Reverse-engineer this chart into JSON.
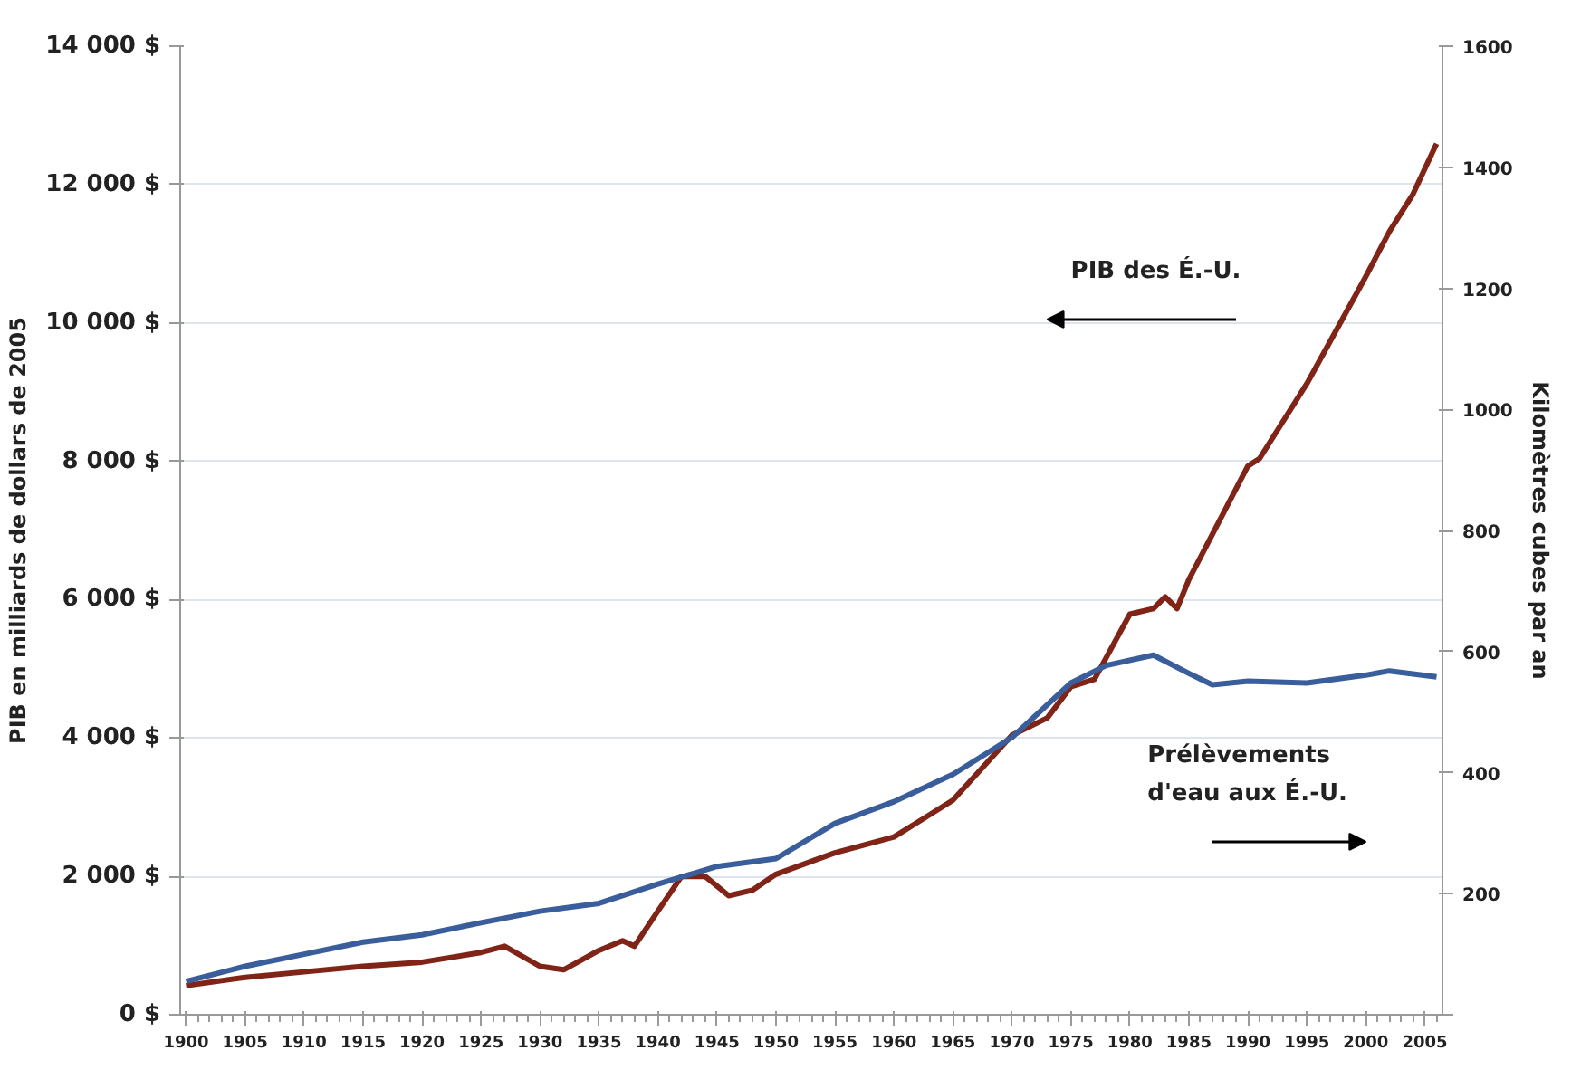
{
  "chart_data": {
    "type": "line",
    "ylabel": "PIB en milliards de dollars de 2005",
    "y2label": "Kilomètres cubes par an",
    "annotations": [
      "PIB des É.-U.",
      "Prélèvements d'eau aux É.-U."
    ],
    "xlim": [
      1899.5,
      2006.5
    ],
    "xticks": [
      1900,
      1905,
      1910,
      1915,
      1920,
      1925,
      1930,
      1935,
      1940,
      1945,
      1950,
      1955,
      1960,
      1965,
      1970,
      1975,
      1980,
      1985,
      1990,
      1995,
      2000,
      2005
    ],
    "ylim": [
      0,
      14000
    ],
    "yticks": [
      {
        "value": 0,
        "label": "0 $"
      },
      {
        "value": 2000,
        "label": "2 000 $"
      },
      {
        "value": 4000,
        "label": "4 000 $"
      },
      {
        "value": 6000,
        "label": "6 000 $"
      },
      {
        "value": 8000,
        "label": "8 000 $"
      },
      {
        "value": 10000,
        "label": "10 000 $"
      },
      {
        "value": 12000,
        "label": "12 000 $"
      },
      {
        "value": 14000,
        "label": "14 000 $"
      }
    ],
    "y2lim": [
      0,
      1600
    ],
    "y2ticks": [
      {
        "value": 0,
        "label": null
      },
      200,
      400,
      600,
      800,
      1000,
      1200,
      1400,
      1600
    ],
    "grid": "y",
    "line_style": "solid",
    "series": [
      {
        "color": "#7f2417",
        "x": [
          1900,
          1905,
          1910,
          1915,
          1920,
          1925,
          1927,
          1930,
          1932,
          1935,
          1937,
          1938,
          1940,
          1942,
          1944,
          1946,
          1948,
          1950,
          1955,
          1960,
          1965,
          1970,
          1973,
          1975,
          1977,
          1980,
          1982,
          1983,
          1984,
          1985,
          1990,
          1991,
          1995,
          2000,
          2002,
          2004,
          2006
        ],
        "values": [
          420,
          540,
          620,
          700,
          760,
          900,
          990,
          700,
          650,
          930,
          1070,
          990,
          1500,
          2000,
          2000,
          1720,
          1800,
          2030,
          2340,
          2570,
          3100,
          4040,
          4290,
          4740,
          4850,
          5790,
          5870,
          6040,
          5870,
          6290,
          7930,
          8040,
          9120,
          10670,
          11320,
          11860,
          12590
        ]
      },
      {
        "color": "#3a5d9c",
        "axis": "y2",
        "x": [
          1900,
          1905,
          1910,
          1915,
          1920,
          1925,
          1930,
          1935,
          1940,
          1945,
          1950,
          1955,
          1960,
          1965,
          1970,
          1975,
          1978,
          1982,
          1985,
          1987,
          1990,
          1995,
          2000,
          2002,
          2006
        ],
        "values": [
          55,
          80,
          100,
          120,
          132,
          152,
          171,
          184,
          216,
          245,
          258,
          316,
          352,
          397,
          458,
          548,
          577,
          594,
          564,
          545,
          551,
          548,
          561,
          568,
          558
        ]
      }
    ]
  }
}
